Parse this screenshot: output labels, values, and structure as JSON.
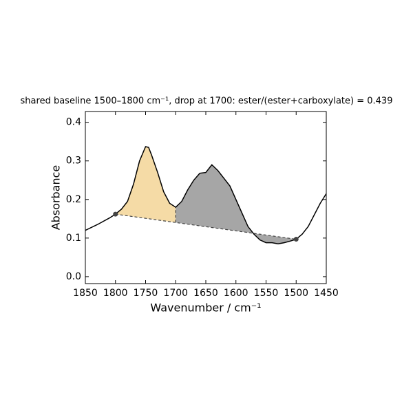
{
  "chart_data": {
    "type": "line",
    "title": "shared baseline 1500–1800 cm⁻¹, drop at 1700: ester/(ester+carboxylate) = 0.439",
    "x_label": "Wavenumber / cm⁻¹",
    "y_label": "Absorbance",
    "x": [
      1850,
      1830,
      1810,
      1800,
      1790,
      1780,
      1770,
      1760,
      1750,
      1745,
      1740,
      1730,
      1720,
      1710,
      1700,
      1690,
      1680,
      1670,
      1660,
      1650,
      1640,
      1630,
      1620,
      1610,
      1600,
      1590,
      1580,
      1570,
      1560,
      1550,
      1540,
      1530,
      1520,
      1510,
      1500,
      1490,
      1480,
      1470,
      1460,
      1450
    ],
    "values": [
      0.12,
      0.135,
      0.152,
      0.162,
      0.175,
      0.195,
      0.24,
      0.3,
      0.337,
      0.335,
      0.315,
      0.27,
      0.22,
      0.19,
      0.18,
      0.195,
      0.225,
      0.25,
      0.268,
      0.27,
      0.29,
      0.275,
      0.255,
      0.235,
      0.2,
      0.165,
      0.13,
      0.11,
      0.095,
      0.088,
      0.088,
      0.085,
      0.088,
      0.092,
      0.097,
      0.11,
      0.13,
      0.16,
      0.19,
      0.215
    ],
    "color": "#000000",
    "baseline": {
      "x": [
        1800,
        1500
      ],
      "values": [
        0.162,
        0.097
      ],
      "color": "#444444"
    },
    "regions": [
      {
        "from": 1800,
        "to": 1700,
        "color": "#f5dba6"
      },
      {
        "from": 1700,
        "to": 1500,
        "color": "#a6a6a6"
      }
    ],
    "xlim": [
      1850,
      1450
    ],
    "ylim": [
      -0.018,
      0.428
    ],
    "xticks": [
      1850,
      1800,
      1750,
      1700,
      1650,
      1600,
      1550,
      1500,
      1450
    ],
    "yticks": [
      {
        "value": 0,
        "label": "0.0"
      },
      0.1,
      0.2,
      0.3,
      0.4
    ]
  }
}
